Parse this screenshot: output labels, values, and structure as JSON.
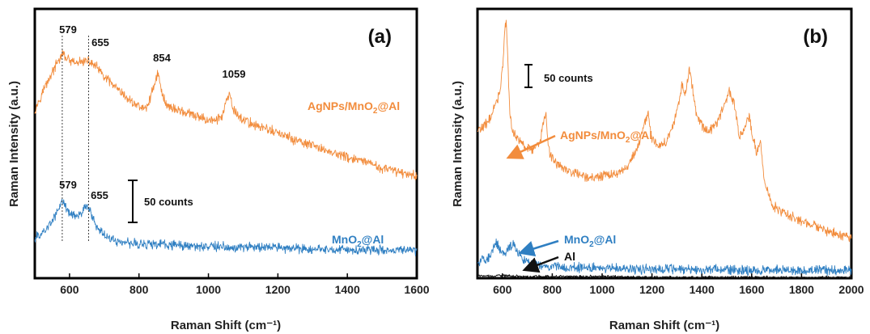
{
  "colors": {
    "orange": "#f28c3c",
    "blue": "#2f7fc2",
    "black": "#111111"
  },
  "chart_data": [
    {
      "type": "line",
      "panel": "(a)",
      "xlabel": "Raman Shift (cm⁻¹)",
      "ylabel": "Raman Intensity (a.u.)",
      "xlim": [
        500,
        1600
      ],
      "ylim": [
        0,
        330
      ],
      "x_ticks": [
        "600",
        "800",
        "1000",
        "1200",
        "1400",
        "1600"
      ],
      "grid": false,
      "scale_bar": {
        "label": "50 counts",
        "counts": 50
      },
      "series": [
        {
          "name": "AgNPs/MnO₂@Al",
          "label_main": "AgNPs/MnO",
          "label_sub": "2",
          "label_tail": "@Al",
          "color": "#f28c3c",
          "x": [
            500,
            520,
            540,
            560,
            580,
            600,
            620,
            640,
            660,
            680,
            700,
            720,
            740,
            760,
            780,
            800,
            820,
            835,
            845,
            855,
            865,
            880,
            900,
            940,
            980,
            1020,
            1040,
            1050,
            1060,
            1070,
            1090,
            1120,
            1160,
            1200,
            1250,
            1300,
            1350,
            1400,
            1450,
            1500,
            1550,
            1600
          ],
          "y": [
            206,
            226,
            244,
            260,
            275,
            266,
            263,
            266,
            265,
            258,
            246,
            239,
            230,
            222,
            216,
            211,
            207,
            224,
            240,
            252,
            228,
            212,
            208,
            202,
            196,
            193,
            199,
            214,
            225,
            208,
            197,
            190,
            184,
            178,
            169,
            162,
            155,
            148,
            142,
            135,
            130,
            126
          ]
        },
        {
          "name": "MnO₂@Al",
          "label_main": "MnO",
          "label_sub": "2",
          "label_tail": "@Al",
          "color": "#2f7fc2",
          "x": [
            500,
            520,
            540,
            560,
            570,
            580,
            590,
            600,
            620,
            640,
            650,
            660,
            670,
            690,
            710,
            740,
            780,
            820,
            870,
            920,
            1000,
            1100,
            1200,
            1300,
            1400,
            1500,
            1600
          ],
          "y": [
            48,
            55,
            63,
            78,
            87,
            93,
            86,
            80,
            76,
            83,
            88,
            83,
            70,
            57,
            50,
            45,
            43,
            42,
            41,
            40,
            39,
            38,
            37,
            36,
            35,
            34,
            33
          ]
        }
      ],
      "peak_labels_top": [
        "579",
        "655",
        "854",
        "1059"
      ],
      "peak_labels_bottom": [
        "579",
        "655"
      ],
      "guide_lines_x": [
        579,
        655
      ]
    },
    {
      "type": "line",
      "panel": "(b)",
      "xlabel": "Raman Shift (cm⁻¹)",
      "ylabel": "Raman Intensity (a.u.)",
      "xlim": [
        500,
        2000
      ],
      "ylim": [
        0,
        330
      ],
      "x_ticks": [
        "600",
        "800",
        "1000",
        "1200",
        "1400",
        "1600",
        "1800",
        "2000"
      ],
      "grid": false,
      "scale_bar": {
        "label": "50 counts",
        "counts": 50
      },
      "series": [
        {
          "name": "AgNPs/MnO₂@Al",
          "label_main": "AgNPs/MnO",
          "label_sub": "2",
          "label_tail": "@Al",
          "color": "#f28c3c",
          "x": [
            500,
            540,
            570,
            590,
            600,
            610,
            615,
            620,
            630,
            640,
            660,
            690,
            720,
            750,
            770,
            775,
            780,
            790,
            820,
            860,
            900,
            950,
            1000,
            1050,
            1100,
            1150,
            1170,
            1185,
            1200,
            1230,
            1260,
            1290,
            1310,
            1320,
            1335,
            1350,
            1365,
            1380,
            1400,
            1430,
            1460,
            1490,
            1510,
            1530,
            1550,
            1570,
            1590,
            1600,
            1620,
            1635,
            1650,
            1680,
            1720,
            1800,
            1900,
            2000
          ],
          "y": [
            180,
            190,
            210,
            230,
            255,
            305,
            315,
            280,
            200,
            180,
            172,
            162,
            158,
            165,
            200,
            208,
            172,
            152,
            140,
            132,
            127,
            124,
            125,
            127,
            134,
            165,
            192,
            200,
            172,
            162,
            168,
            190,
            220,
            236,
            226,
            256,
            228,
            200,
            188,
            180,
            190,
            212,
            230,
            214,
            175,
            180,
            200,
            178,
            155,
            168,
            120,
            90,
            82,
            70,
            58,
            50
          ]
        },
        {
          "name": "MnO₂@Al",
          "label_main": "MnO",
          "label_sub": "2",
          "label_tail": "@Al",
          "color": "#2f7fc2",
          "x": [
            500,
            540,
            560,
            575,
            590,
            610,
            630,
            645,
            660,
            680,
            700,
            750,
            800,
            900,
            1000,
            1200,
            1400,
            1600,
            1800,
            2000
          ],
          "y": [
            20,
            24,
            33,
            44,
            35,
            30,
            38,
            43,
            32,
            23,
            19,
            16,
            14,
            13,
            12,
            11,
            11,
            10,
            10,
            10
          ]
        },
        {
          "name": "Al",
          "label_main": "Al",
          "label_sub": "",
          "label_tail": "",
          "color": "#111111",
          "x": [
            500,
            600,
            700,
            800,
            900,
            1000,
            1200,
            1400,
            1600,
            1800,
            2000
          ],
          "y": [
            3,
            3,
            2,
            2,
            2,
            2,
            1,
            1,
            1,
            1,
            1
          ]
        }
      ]
    }
  ]
}
